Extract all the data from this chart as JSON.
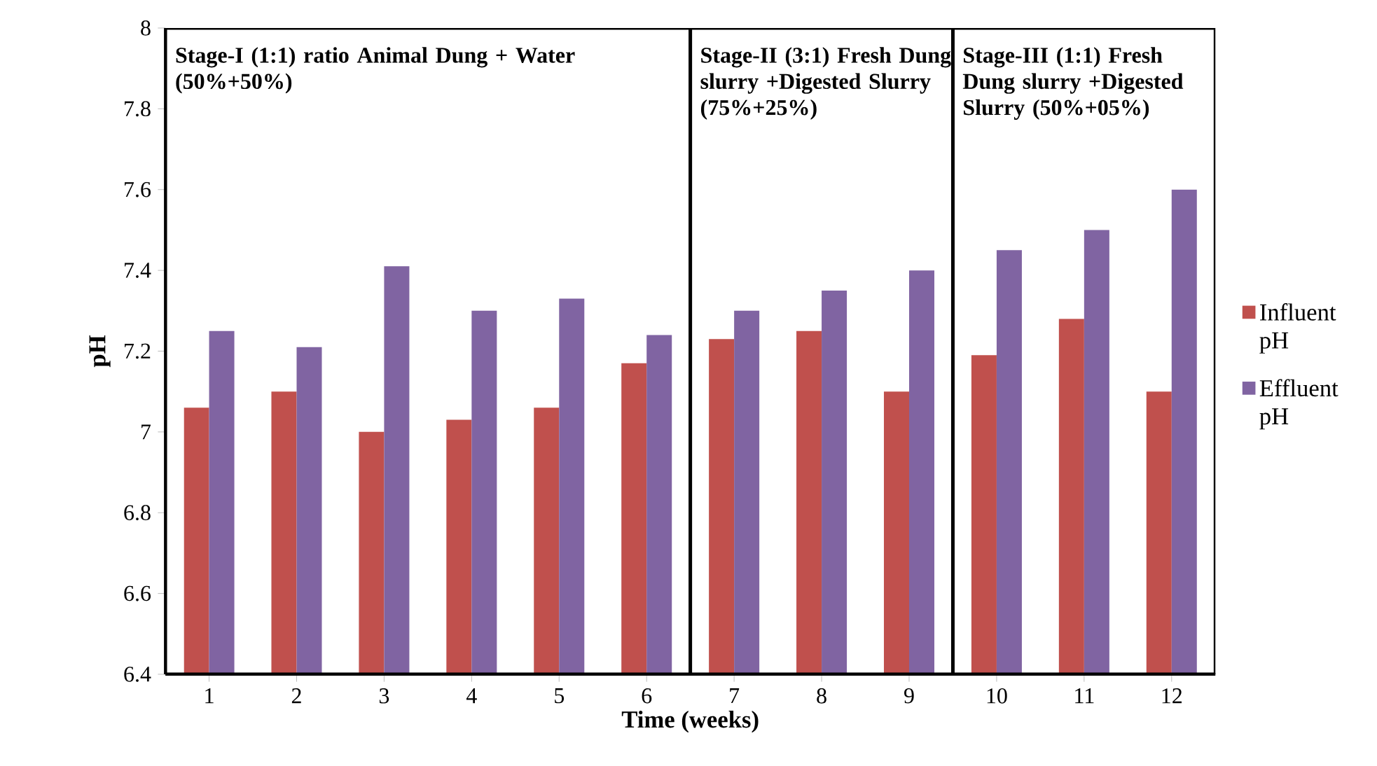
{
  "chart_data": {
    "type": "bar",
    "xlabel": "Time (weeks)",
    "ylabel": "pH",
    "categories": [
      "1",
      "2",
      "3",
      "4",
      "5",
      "6",
      "7",
      "8",
      "9",
      "10",
      "11",
      "12"
    ],
    "series": [
      {
        "name": "Influent pH",
        "color": "#c0504d",
        "values": [
          7.06,
          7.1,
          7.0,
          7.03,
          7.06,
          7.17,
          7.23,
          7.25,
          7.1,
          7.19,
          7.28,
          7.1
        ]
      },
      {
        "name": "Effluent pH",
        "color": "#8064a2",
        "values": [
          7.25,
          7.21,
          7.41,
          7.3,
          7.33,
          7.24,
          7.3,
          7.35,
          7.4,
          7.45,
          7.5,
          7.6
        ]
      }
    ],
    "ylim": [
      6.4,
      8
    ],
    "yticks": [
      6.4,
      6.6,
      6.8,
      7,
      7.2,
      7.4,
      7.6,
      7.8,
      8
    ],
    "annotations": [
      "Stage-I (1:1) ratio Animal Dung + Water (50%+50%)",
      "Stage-II (3:1) Fresh Dung slurry +Digested Slurry (75%+25%)",
      "Stage-III (1:1) Fresh Dung slurry +Digested Slurry (50%+05%)"
    ],
    "grid": false,
    "legend": "right"
  }
}
